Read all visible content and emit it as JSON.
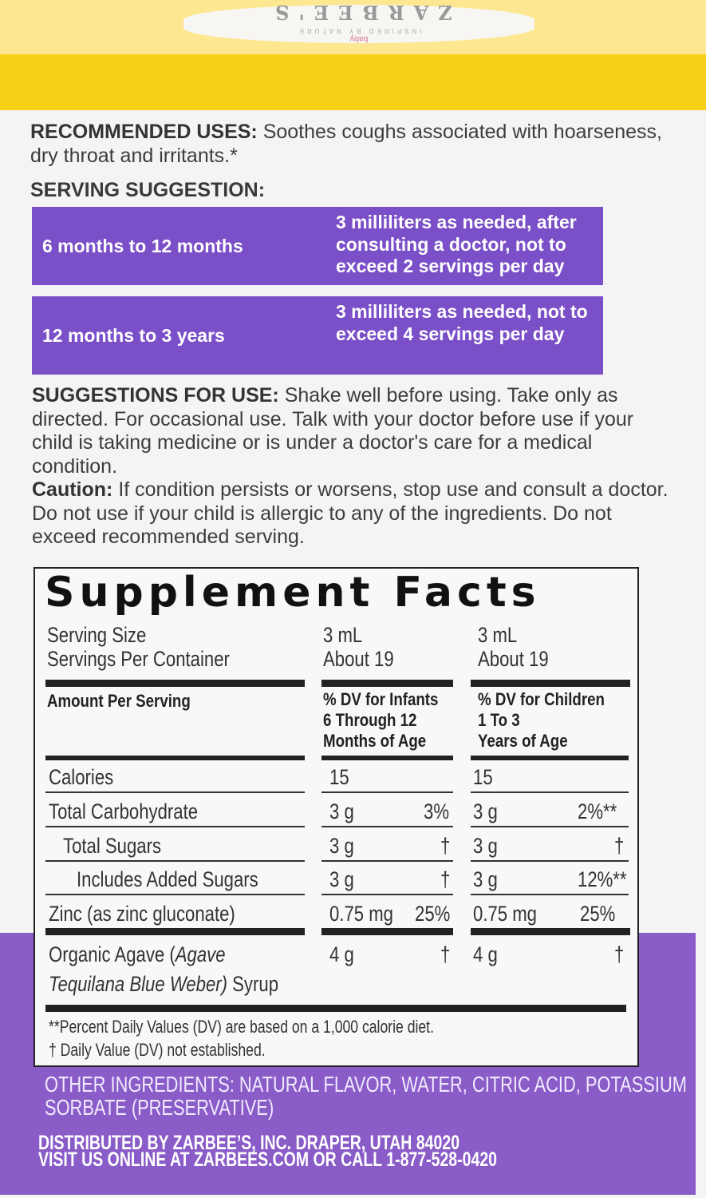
{
  "brand": {
    "logo_text": "ZARBEE'S",
    "tagline": "INSPIRED BY NATURE",
    "sub": "baby"
  },
  "colors": {
    "yellow": "#f7d117",
    "purple": "#7a4fc7",
    "panel_purple": "#8a5cc8"
  },
  "uses": {
    "label": "RECOMMENDED USES:",
    "text": " Soothes coughs associated with hoarseness, dry throat and irritants.*"
  },
  "serving": {
    "title": "SERVING SUGGESTION:",
    "rows": [
      {
        "age": "6 months to 12 months",
        "amount": "3 milliliters as needed, after consulting a doctor, not to exceed 2 servings per day"
      },
      {
        "age": "12 months to 3 years",
        "amount": "3 milliliters as needed, not to exceed 4 servings per day"
      }
    ]
  },
  "suggestions": {
    "label": "SUGGESTIONS FOR USE:",
    "text": " Shake well before using. Take only as directed. For occasional use. Talk with your doctor before use if your child is taking medicine or is under a doctor's care for a medical condition.",
    "caution_label": "Caution:",
    "caution_text": " If condition persists or worsens, stop use and consult a doctor. Do not use if your child is allergic to any of the ingredients. Do not exceed recommended serving."
  },
  "facts": {
    "title": "Supplement Facts",
    "serving_size_label": "Serving Size",
    "servings_label": "Servings Per Container",
    "infant_size": "3 mL",
    "infant_servings": "About 19",
    "child_size": "3 mL",
    "child_servings": "About 19",
    "amount_header": "Amount Per Serving",
    "infant_header": [
      "% DV for Infants",
      "6 Through 12",
      "Months of Age"
    ],
    "child_header": [
      "% DV for Children",
      "1 To 3",
      "Years of Age"
    ],
    "rows": [
      {
        "name": "Calories",
        "inf_amt": "15",
        "inf_dv": "",
        "ch_amt": "15",
        "ch_dv": ""
      },
      {
        "name": "Total Carbohydrate",
        "inf_amt": "3 g",
        "inf_dv": "3%",
        "ch_amt": "3 g",
        "ch_dv": "2%**"
      },
      {
        "name": "Total Sugars",
        "inf_amt": "3 g",
        "inf_dv": "†",
        "ch_amt": "3 g",
        "ch_dv": "†"
      },
      {
        "name": "Includes Added Sugars",
        "inf_amt": "3 g",
        "inf_dv": "†",
        "ch_amt": "3 g",
        "ch_dv": "12%**"
      },
      {
        "name": "Zinc (as zinc gluconate)",
        "inf_amt": "0.75 mg",
        "inf_dv": "25%",
        "ch_amt": "0.75 mg",
        "ch_dv": "25%"
      }
    ],
    "agave": {
      "name1": "Organic Agave (",
      "italic1": "Agave",
      "italic2": "Tequilana Blue Weber)",
      "name2": " Syrup",
      "inf_amt": "4 g",
      "inf_dv": "†",
      "ch_amt": "4 g",
      "ch_dv": "†"
    },
    "footnote1": "**Percent Daily Values (DV) are based on a 1,000 calorie diet.",
    "footnote2": "† Daily Value (DV) not established."
  },
  "other_ingredients": {
    "line1": "OTHER INGREDIENTS:  NATURAL FLAVOR, WATER, CITRIC ACID, POTASSIUM",
    "line2": "SORBATE (PRESERVATIVE)"
  },
  "distributor": {
    "line1": "DISTRIBUTED BY ZARBEE’S, INC. DRAPER, UTAH 84020",
    "line2": "VISIT US ONLINE AT ZARBEES.COM OR CALL 1-877-528-0420"
  }
}
